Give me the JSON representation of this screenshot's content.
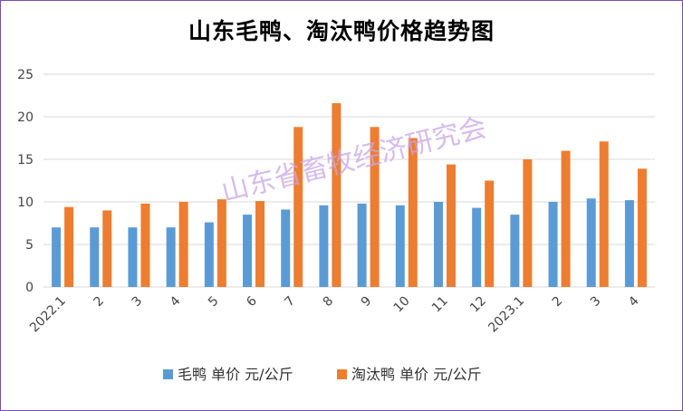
{
  "chart_data": {
    "type": "bar",
    "title": "山东毛鸭、淘汰鸭价格趋势图",
    "categories": [
      "2022.1",
      "2",
      "3",
      "4",
      "5",
      "6",
      "7",
      "8",
      "9",
      "10",
      "11",
      "12",
      "2023.1",
      "2",
      "3",
      "4"
    ],
    "series": [
      {
        "name": "毛鸭 单价 元/公斤",
        "color": "#5b9bd5",
        "values": [
          7.0,
          7.0,
          7.0,
          7.0,
          7.6,
          8.5,
          9.1,
          9.6,
          9.8,
          9.6,
          10.0,
          9.3,
          8.5,
          10.0,
          10.4,
          10.2
        ]
      },
      {
        "name": "淘汰鸭 单价 元/公斤",
        "color": "#ed7d31",
        "values": [
          9.4,
          9.0,
          9.8,
          10.0,
          10.3,
          10.1,
          18.8,
          21.6,
          18.8,
          17.5,
          14.4,
          12.5,
          15.0,
          16.0,
          17.1,
          13.9
        ]
      }
    ],
    "xlabel": "",
    "ylabel": "",
    "ylim": [
      0,
      25
    ],
    "yticks": [
      0,
      5,
      10,
      15,
      20,
      25
    ],
    "grid": true,
    "legend_position": "bottom"
  },
  "watermark": "山东省畜牧经济研究会",
  "grid_color": "#d9d9d9"
}
